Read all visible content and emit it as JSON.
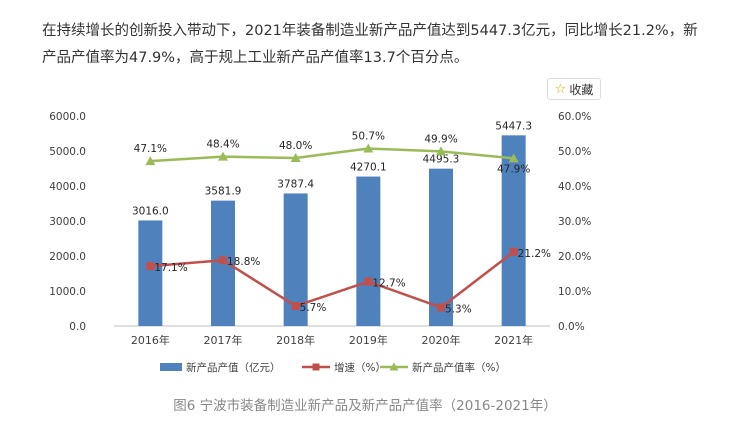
{
  "article": {
    "paragraph": "在持续增长的创新投入带动下，2021年装备制造业新产品产值达到5447.3亿元，同比增长21.2%，新产品产值率为47.9%，高于规上工业新产品产值率13.7个百分点。"
  },
  "favorite_button": {
    "label": "收藏",
    "icon": "star-icon"
  },
  "caption": "图6 宁波市装备制造业新产品及新产品产值率（2016-2021年）",
  "colors": {
    "bar": "#4f81bd",
    "growth": "#c0504d",
    "rate": "#9bbb59",
    "axis": "#bfbfbf"
  },
  "chart_data": {
    "type": "bar",
    "categories": [
      "2016年",
      "2017年",
      "2018年",
      "2019年",
      "2020年",
      "2021年"
    ],
    "series": [
      {
        "name": "新产品产值（亿元）",
        "type": "bar",
        "axis": "left",
        "values": [
          3016.0,
          3581.9,
          3787.4,
          4270.1,
          4495.3,
          5447.3
        ],
        "labels": [
          "3016.0",
          "3581.9",
          "3787.4",
          "4270.1",
          "4495.3",
          "5447.3"
        ]
      },
      {
        "name": "增速（%）",
        "type": "line",
        "axis": "right",
        "marker": "square",
        "values": [
          17.1,
          18.8,
          5.7,
          12.7,
          5.3,
          21.2
        ],
        "labels": [
          "17.1%",
          "18.8%",
          "5.7%",
          "12.7%",
          "5.3%",
          "21.2%"
        ]
      },
      {
        "name": "新产品产值率（%）",
        "type": "line",
        "axis": "right",
        "marker": "triangle",
        "values": [
          47.1,
          48.4,
          48.0,
          50.7,
          49.9,
          47.9
        ],
        "labels": [
          "47.1%",
          "48.4%",
          "48.0%",
          "50.7%",
          "49.9%",
          "47.9%"
        ]
      }
    ],
    "y_left": {
      "min": 0,
      "max": 6000,
      "ticks": [
        "0.0",
        "1000.0",
        "2000.0",
        "3000.0",
        "4000.0",
        "5000.0",
        "6000.0"
      ]
    },
    "y_right": {
      "min": 0,
      "max": 60,
      "ticks": [
        "0.0%",
        "10.0%",
        "20.0%",
        "30.0%",
        "40.0%",
        "50.0%",
        "60.0%"
      ]
    },
    "grid": false,
    "legend_position": "bottom"
  }
}
